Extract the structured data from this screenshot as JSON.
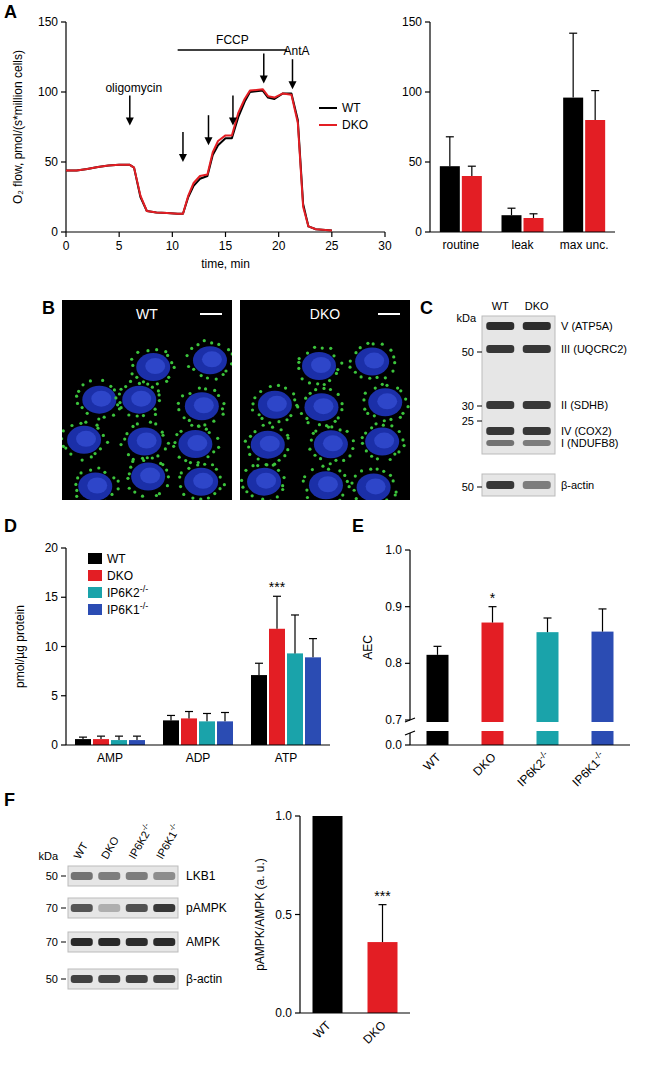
{
  "chart_data": [
    {
      "type": "line",
      "x": [
        0,
        1,
        2,
        3,
        4,
        5,
        6,
        6.4,
        7,
        7.6,
        8.5,
        9.5,
        10.5,
        11,
        11.5,
        12,
        12.6,
        13.3,
        13.8,
        14.3,
        15,
        15.6,
        16.2,
        16.8,
        17.3,
        18.5,
        19,
        19.6,
        20.4,
        21.2,
        21.8,
        22.3,
        22.8,
        23.5,
        25
      ],
      "series": [
        {
          "name": "WT",
          "color": "#000000",
          "values": [
            44,
            44,
            45,
            46.5,
            47.5,
            48,
            48,
            46,
            25,
            15,
            14,
            13.5,
            13,
            13,
            25,
            33,
            38,
            40,
            55,
            62,
            67,
            67,
            82,
            93,
            100,
            101,
            96,
            95,
            99,
            99,
            80,
            20,
            4,
            2,
            1
          ]
        },
        {
          "name": "DKO",
          "color": "#e31e24",
          "values": [
            44,
            44,
            45,
            46.5,
            47.5,
            48,
            48,
            46,
            26,
            15,
            14,
            13.5,
            13,
            13,
            26,
            35,
            40,
            41,
            57,
            65,
            69,
            69,
            85,
            95,
            101,
            102,
            97,
            96,
            99,
            98,
            78,
            18,
            4,
            2,
            1
          ]
        }
      ],
      "xlabel": "time, min",
      "ylabel": "O₂ flow, pmol/(s*million cells)",
      "xlim": [
        0,
        30
      ],
      "xticks": [
        0,
        5,
        10,
        15,
        20,
        25,
        30
      ],
      "ylim": [
        0,
        150
      ],
      "yticks": [
        0,
        50,
        100,
        150
      ],
      "legend": "right",
      "arrows": [
        {
          "x": 6,
          "y": 76
        },
        {
          "x": 11,
          "y": 50
        },
        {
          "x": 13.4,
          "y": 62
        },
        {
          "x": 15.7,
          "y": 76
        },
        {
          "x": 18.6,
          "y": 106
        },
        {
          "x": 21.3,
          "y": 102
        }
      ],
      "annotations": [
        {
          "text": "oligomycin",
          "x": 6
        },
        {
          "text": "FCCP",
          "x": [
            10.5,
            20.8
          ]
        },
        {
          "text": "AntA",
          "x": 21.3
        }
      ]
    },
    {
      "type": "bar",
      "categories": [
        "routine",
        "leak",
        "max unc."
      ],
      "series": [
        {
          "color": "#000000",
          "values": [
            47,
            12,
            96
          ],
          "errors": [
            21,
            5,
            46
          ]
        },
        {
          "color": "#e31e24",
          "values": [
            40,
            10,
            80
          ],
          "errors": [
            7,
            3,
            21
          ]
        }
      ],
      "ylim": [
        0,
        150
      ],
      "yticks": [
        0,
        50,
        100,
        150
      ]
    },
    {
      "type": "bar",
      "categories": [
        "AMP",
        "ADP",
        "ATP"
      ],
      "series": [
        {
          "name": "WT",
          "color": "#000000",
          "values": [
            0.6,
            2.5,
            7.1
          ],
          "errors": [
            0.2,
            0.5,
            1.2
          ]
        },
        {
          "name": "DKO",
          "color": "#e31e24",
          "values": [
            0.6,
            2.7,
            11.8
          ],
          "errors": [
            0.3,
            0.7,
            3.3
          ]
        },
        {
          "name": "IP6K2-/-",
          "color": "#1aa3aa",
          "values": [
            0.5,
            2.4,
            9.3
          ],
          "errors": [
            0.4,
            0.8,
            3.9
          ]
        },
        {
          "name": "IP6K1-/-",
          "color": "#2b4cb3",
          "values": [
            0.5,
            2.4,
            8.9
          ],
          "errors": [
            0.4,
            0.9,
            1.9
          ]
        }
      ],
      "ylabel": "pmol/µg protein",
      "ylim": [
        0,
        20
      ],
      "yticks": [
        0,
        5,
        10,
        15,
        20
      ],
      "legend": "upper left",
      "annotations": [
        {
          "text": "***",
          "category": "ATP",
          "series": "DKO"
        }
      ]
    },
    {
      "type": "bar",
      "categories": [
        "WT",
        "DKO",
        "IP6K2-/-",
        "IP6K1-/-"
      ],
      "values": [
        0.815,
        0.872,
        0.855,
        0.856
      ],
      "errors": [
        0.015,
        0.028,
        0.025,
        0.04
      ],
      "colors": [
        "#000000",
        "#e31e24",
        "#1aa3aa",
        "#2b4cb3"
      ],
      "ylabel": "AEC",
      "ylim": [
        0,
        1
      ],
      "ybreak": [
        0.05,
        0.7
      ],
      "yticks": [
        {
          "value": 0,
          "label": "0.0"
        },
        0.7,
        0.8,
        0.9,
        {
          "value": 1,
          "label": "1.0"
        }
      ],
      "annotations": [
        {
          "text": "*",
          "category": "DKO"
        }
      ]
    },
    {
      "type": "bar",
      "categories": [
        "WT",
        "DKO"
      ],
      "values": [
        1.0,
        0.36
      ],
      "errors": [
        null,
        0.19
      ],
      "colors": [
        "#000000",
        "#e31e24"
      ],
      "ylabel": "pAMPK/AMPK (a. u.)",
      "ylim": [
        0,
        1
      ],
      "yticks": [
        {
          "value": 0,
          "label": "0.0"
        },
        0.5,
        {
          "value": 1,
          "label": "1.0"
        }
      ],
      "annotations": [
        {
          "text": "***",
          "category": "DKO"
        }
      ]
    }
  ],
  "figure": {
    "panels": [
      "A",
      "B",
      "C",
      "D",
      "E",
      "F"
    ],
    "micrograph": {
      "labels": [
        "WT",
        "DKO"
      ]
    },
    "blot_c": {
      "kda_label": "kDa",
      "lanes": [
        "WT",
        "DKO"
      ],
      "markers": [
        50,
        30,
        25,
        50
      ],
      "rows": [
        {
          "label": "V (ATP5A)",
          "intensity": [
            0.9,
            0.9
          ]
        },
        {
          "label": "III (UQCRC2)",
          "intensity": [
            0.85,
            0.85
          ]
        },
        {
          "label": "II (SDHB)",
          "intensity": [
            0.85,
            0.85
          ]
        },
        {
          "label": "IV (COX2)",
          "intensity": [
            0.85,
            0.85
          ]
        },
        {
          "label": "I (NDUFB8)",
          "intensity": [
            0.55,
            0.5
          ]
        },
        {
          "label": "β-actin",
          "intensity": [
            0.85,
            0.5
          ]
        }
      ]
    },
    "blot_f": {
      "kda_label": "kDa",
      "lanes": [
        "WT",
        "DKO",
        "IP6K2-/-",
        "IP6K1-/-"
      ],
      "rows": [
        {
          "label": "LKB1",
          "kda": 50,
          "intensity": [
            0.55,
            0.5,
            0.5,
            0.42
          ]
        },
        {
          "label": "pAMPK",
          "kda": 70,
          "intensity": [
            0.7,
            0.25,
            0.72,
            0.85
          ]
        },
        {
          "label": "AMPK",
          "kda": 70,
          "intensity": [
            0.92,
            0.92,
            0.9,
            0.92
          ]
        },
        {
          "label": "β-actin",
          "kda": 50,
          "intensity": [
            0.8,
            0.78,
            0.8,
            0.8
          ]
        }
      ]
    }
  }
}
